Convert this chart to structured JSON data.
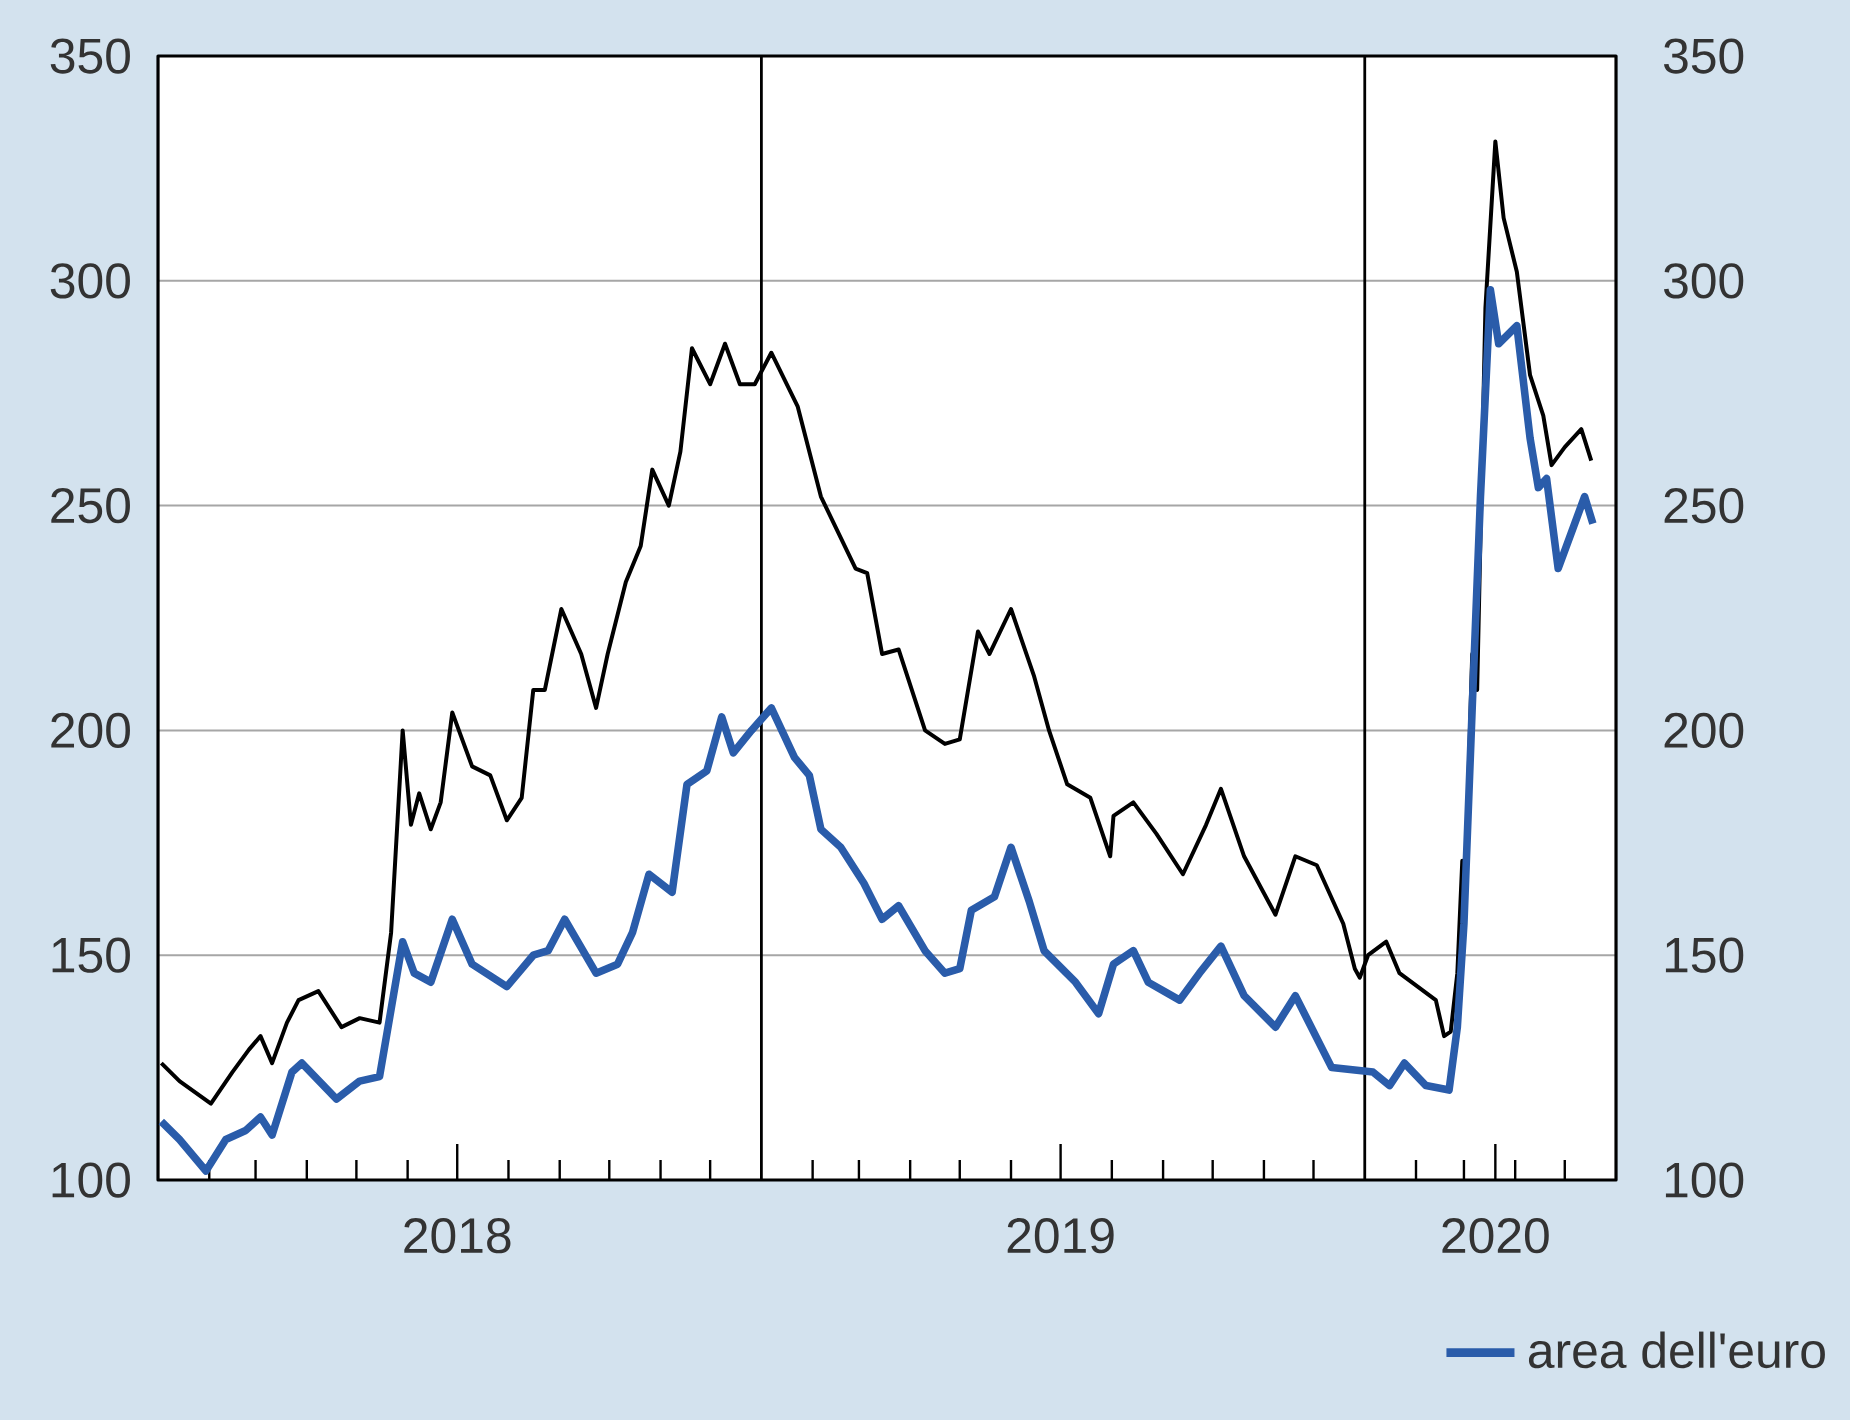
{
  "chart_data": {
    "type": "line",
    "xlim": [
      "2018-01-01",
      "2020-06-01"
    ],
    "ylim": [
      100,
      350
    ],
    "yticks": [
      100,
      150,
      200,
      250,
      300,
      350
    ],
    "y2lim": [
      100,
      350
    ],
    "y2ticks": [
      100,
      150,
      200,
      250,
      300,
      350
    ],
    "grid": "y",
    "legend": "bottom right",
    "xticks": [
      {
        "value": "2018-02-01",
        "label": null
      },
      {
        "value": "2018-03-01",
        "label": null
      },
      {
        "value": "2018-04-01",
        "label": null
      },
      {
        "value": "2018-05-01",
        "label": null
      },
      {
        "value": "2018-06-01",
        "label": null
      },
      {
        "value": "2018-07-01",
        "label": "2018"
      },
      {
        "value": "2018-08-01",
        "label": null
      },
      {
        "value": "2018-09-01",
        "label": null
      },
      {
        "value": "2018-10-01",
        "label": null
      },
      {
        "value": "2018-11-01",
        "label": null
      },
      {
        "value": "2018-12-01",
        "label": null
      },
      {
        "value": "2019-02-01",
        "label": null
      },
      {
        "value": "2019-03-01",
        "label": null
      },
      {
        "value": "2019-04-01",
        "label": null
      },
      {
        "value": "2019-05-01",
        "label": null
      },
      {
        "value": "2019-06-01",
        "label": null
      },
      {
        "value": "2019-07-01",
        "label": "2019"
      },
      {
        "value": "2019-08-01",
        "label": null
      },
      {
        "value": "2019-09-01",
        "label": null
      },
      {
        "value": "2019-10-01",
        "label": null
      },
      {
        "value": "2019-11-01",
        "label": null
      },
      {
        "value": "2019-12-01",
        "label": null
      },
      {
        "value": "2020-02-01",
        "label": null
      },
      {
        "value": "2020-03-01",
        "label": null
      },
      {
        "value": "2020-03-20",
        "label": "2020"
      },
      {
        "value": "2020-04-01",
        "label": null
      },
      {
        "value": "2020-05-01",
        "label": null
      }
    ],
    "ref_lines": [
      {
        "axis": "x",
        "value": "2019-01-01",
        "color": "#000000"
      },
      {
        "axis": "x",
        "value": "2020-01-01",
        "color": "#000000"
      }
    ],
    "series": [
      {
        "color": "#000000",
        "x": [
          "2018-01-03",
          "2018-01-14",
          "2018-02-02",
          "2018-02-15",
          "2018-02-25",
          "2018-03-04",
          "2018-03-11",
          "2018-03-20",
          "2018-03-27",
          "2018-04-08",
          "2018-04-22",
          "2018-05-03",
          "2018-05-15",
          "2018-05-22",
          "2018-05-29",
          "2018-06-03",
          "2018-06-08",
          "2018-06-15",
          "2018-06-21",
          "2018-06-28",
          "2018-07-10",
          "2018-07-21",
          "2018-07-31",
          "2018-08-09",
          "2018-08-16",
          "2018-08-23",
          "2018-09-02",
          "2018-09-14",
          "2018-09-23",
          "2018-09-30",
          "2018-10-11",
          "2018-10-20",
          "2018-10-27",
          "2018-11-06",
          "2018-11-13",
          "2018-11-20",
          "2018-12-01",
          "2018-12-10",
          "2018-12-19",
          "2018-12-28",
          "2019-01-07",
          "2019-01-23",
          "2019-02-06",
          "2019-02-27",
          "2019-03-06",
          "2019-03-15",
          "2019-03-25",
          "2019-04-10",
          "2019-04-22",
          "2019-05-01",
          "2019-05-12",
          "2019-05-19",
          "2019-06-01",
          "2019-06-15",
          "2019-06-24",
          "2019-07-05",
          "2019-07-19",
          "2019-07-31",
          "2019-08-02",
          "2019-08-14",
          "2019-08-28",
          "2019-09-13",
          "2019-09-27",
          "2019-10-06",
          "2019-10-20",
          "2019-11-08",
          "2019-11-20",
          "2019-12-03",
          "2019-12-19",
          "2019-12-26",
          "2019-12-29",
          "2020-01-03",
          "2020-01-14",
          "2020-01-22",
          "2020-02-02",
          "2020-02-13",
          "2020-02-18",
          "2020-02-22",
          "2020-02-26",
          "2020-02-29",
          "2020-03-01",
          "2020-03-06",
          "2020-03-09",
          "2020-03-14",
          "2020-03-20",
          "2020-03-25",
          "2020-04-02",
          "2020-04-10",
          "2020-04-18",
          "2020-04-23",
          "2020-05-01",
          "2020-05-11",
          "2020-05-17"
        ],
        "values": [
          126,
          122,
          117,
          124,
          129,
          132,
          126,
          135,
          140,
          142,
          134,
          136,
          135,
          155,
          200,
          179,
          186,
          178,
          184,
          204,
          192,
          190,
          180,
          185,
          209,
          209,
          227,
          217,
          205,
          217,
          233,
          241,
          258,
          250,
          262,
          285,
          277,
          286,
          277,
          277,
          284,
          272,
          252,
          236,
          235,
          217,
          218,
          200,
          197,
          198,
          222,
          217,
          227,
          212,
          200,
          188,
          185,
          172,
          181,
          184,
          177,
          168,
          179,
          187,
          172,
          159,
          172,
          170,
          157,
          147,
          145,
          150,
          153,
          146,
          143,
          140,
          132,
          133,
          146,
          171,
          156,
          217,
          209,
          294,
          331,
          314,
          302,
          279,
          270,
          259,
          263,
          267,
          260
        ]
      },
      {
        "name": "area dell'euro",
        "color": "#2a5caa",
        "x": [
          "2018-01-03",
          "2018-01-14",
          "2018-01-30",
          "2018-02-11",
          "2018-02-23",
          "2018-03-04",
          "2018-03-11",
          "2018-03-23",
          "2018-03-29",
          "2018-04-19",
          "2018-05-03",
          "2018-05-15",
          "2018-05-29",
          "2018-06-05",
          "2018-06-15",
          "2018-06-28",
          "2018-07-10",
          "2018-07-31",
          "2018-08-16",
          "2018-08-25",
          "2018-09-04",
          "2018-09-23",
          "2018-10-06",
          "2018-10-15",
          "2018-10-25",
          "2018-11-08",
          "2018-11-17",
          "2018-11-29",
          "2018-12-08",
          "2018-12-15",
          "2018-12-26",
          "2019-01-07",
          "2019-01-21",
          "2019-01-30",
          "2019-02-06",
          "2019-02-18",
          "2019-03-04",
          "2019-03-15",
          "2019-03-25",
          "2019-04-10",
          "2019-04-22",
          "2019-05-01",
          "2019-05-08",
          "2019-05-22",
          "2019-06-01",
          "2019-06-12",
          "2019-06-21",
          "2019-07-10",
          "2019-07-24",
          "2019-08-02",
          "2019-08-14",
          "2019-08-23",
          "2019-09-11",
          "2019-09-23",
          "2019-10-06",
          "2019-10-20",
          "2019-11-08",
          "2019-11-20",
          "2019-12-12",
          "2020-01-06",
          "2020-01-16",
          "2020-01-25",
          "2020-02-07",
          "2020-02-21",
          "2020-02-26",
          "2020-03-01",
          "2020-03-06",
          "2020-03-11",
          "2020-03-17",
          "2020-03-22",
          "2020-04-02",
          "2020-04-10",
          "2020-04-15",
          "2020-04-20",
          "2020-04-27",
          "2020-05-06",
          "2020-05-13",
          "2020-05-18"
        ],
        "values": [
          113,
          109,
          102,
          109,
          111,
          114,
          110,
          124,
          126,
          118,
          122,
          123,
          153,
          146,
          144,
          158,
          148,
          143,
          150,
          151,
          158,
          146,
          148,
          155,
          168,
          164,
          188,
          191,
          203,
          195,
          200,
          205,
          194,
          190,
          178,
          174,
          166,
          158,
          161,
          151,
          146,
          147,
          160,
          163,
          174,
          162,
          151,
          144,
          137,
          148,
          151,
          144,
          140,
          146,
          152,
          141,
          134,
          141,
          125,
          124,
          121,
          126,
          121,
          120,
          134,
          157,
          205,
          252,
          298,
          286,
          290,
          265,
          254,
          256,
          236,
          245,
          252,
          246
        ]
      }
    ]
  }
}
